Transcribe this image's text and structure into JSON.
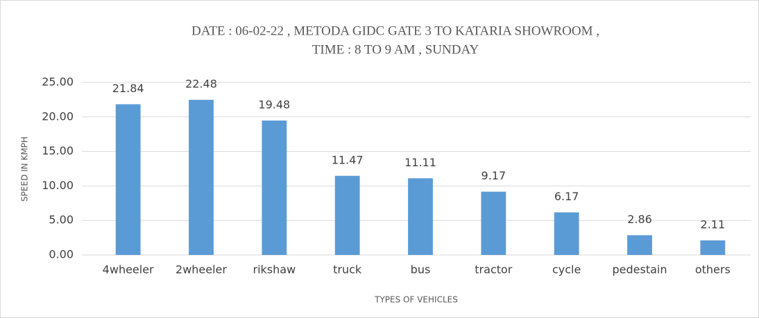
{
  "chart_data": {
    "type": "bar",
    "title": [
      "DATE : 06-02-22 , METODA GIDC GATE 3 TO KATARIA SHOWROOM ,",
      "TIME : 8 TO 9 AM , SUNDAY"
    ],
    "x_label": "TYPES OF VEHICLES",
    "y_label": "SPEED IN KMPH",
    "categories": [
      "4wheeler",
      "2wheeler",
      "rikshaw",
      "truck",
      "bus",
      "tractor",
      "cycle",
      "pedestain",
      "others"
    ],
    "values": [
      21.84,
      22.48,
      19.48,
      11.47,
      11.11,
      9.17,
      6.17,
      2.86,
      2.11
    ],
    "color": "#5b9bd5",
    "ylim": [
      0,
      25
    ],
    "yticks": [
      {
        "value": 0,
        "label": "0.00"
      },
      {
        "value": 5,
        "label": "5.00"
      },
      {
        "value": 10,
        "label": "10.00"
      },
      {
        "value": 15,
        "label": "15.00"
      },
      {
        "value": 20,
        "label": "20.00"
      },
      {
        "value": 25,
        "label": "25.00"
      }
    ],
    "grid": true
  }
}
